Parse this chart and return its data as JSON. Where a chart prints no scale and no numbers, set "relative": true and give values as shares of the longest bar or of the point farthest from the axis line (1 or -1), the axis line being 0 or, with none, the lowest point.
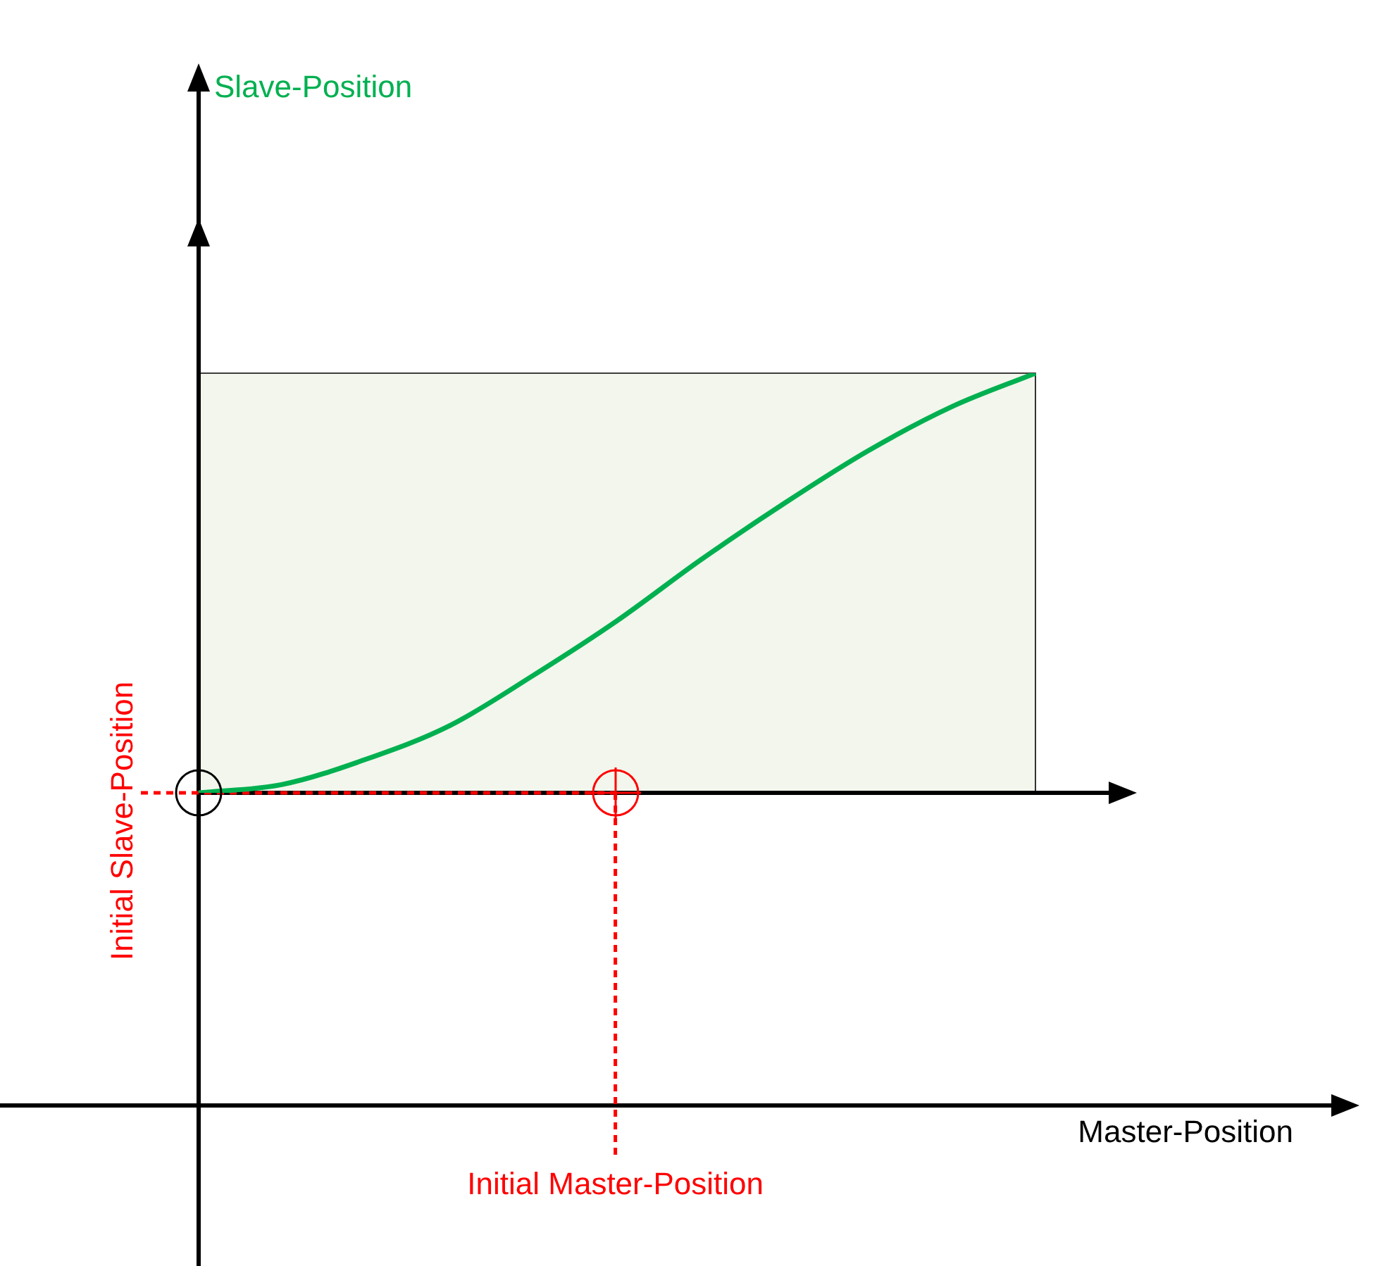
{
  "chart_data": {
    "type": "line",
    "relative": true,
    "categories": [
      null,
      null,
      null,
      null,
      null,
      null,
      null,
      null,
      null,
      null,
      null
    ],
    "series": [
      {
        "color": "#00b050",
        "values": [
          0,
          0.02,
          0.08,
          0.16,
          0.28,
          0.41,
          0.555,
          0.69,
          0.815,
          0.92,
          1
        ]
      }
    ],
    "annotations": [
      "Slave-Position",
      "Master-Position",
      "Initial Slave-Position",
      "Initial Master-Position"
    ],
    "legend": false,
    "marker": "none",
    "line_style": "solid"
  }
}
